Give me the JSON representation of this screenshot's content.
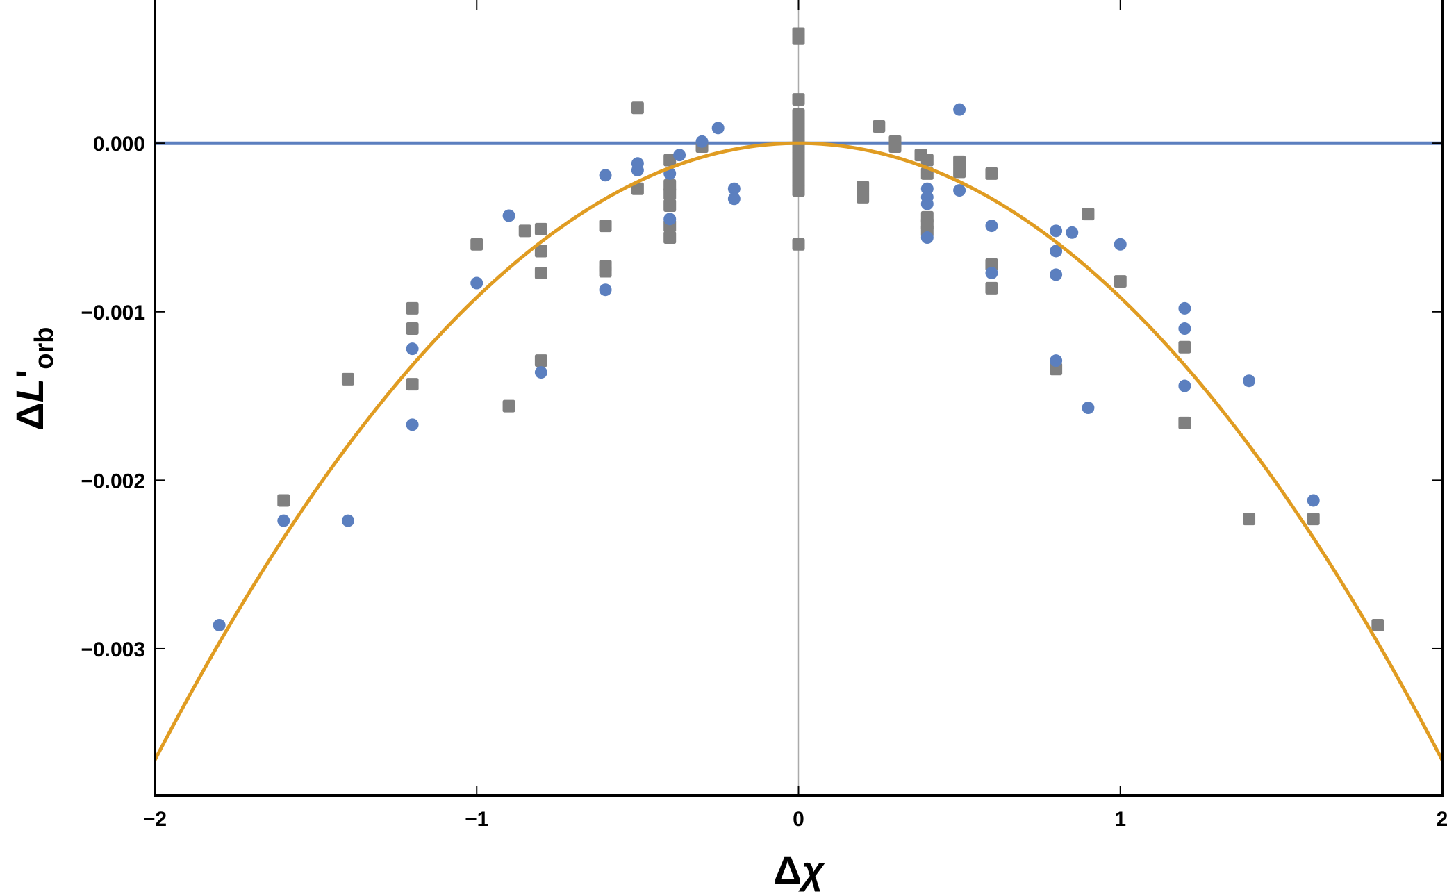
{
  "chart_data": {
    "type": "scatter",
    "xlabel_main": "Δ",
    "xlabel_var": "χ",
    "ylabel_main": "Δ",
    "ylabel_var": "L",
    "ylabel_prime": "'",
    "ylabel_sub": "orb",
    "xlim": [
      -2,
      2
    ],
    "ylim": [
      -0.00387,
      0.00085
    ],
    "x_ticks": [
      {
        "value": -2,
        "label": "−2"
      },
      {
        "value": -1,
        "label": "−1"
      },
      {
        "value": 0,
        "label": "0"
      },
      {
        "value": 1,
        "label": "1"
      },
      {
        "value": 2,
        "label": "2"
      }
    ],
    "y_ticks": [
      {
        "value": 0,
        "label": "0.000"
      },
      {
        "value": -0.001,
        "label": "−0.001"
      },
      {
        "value": -0.002,
        "label": "−0.002"
      },
      {
        "value": -0.003,
        "label": "−0.003"
      }
    ],
    "grid": false,
    "colors": {
      "circles": "#5b7fbf",
      "squares": "#808080",
      "curve": "#e09c22",
      "zero_line": "#5b7fbf",
      "vertical_axis": "#aaaaaa"
    },
    "series": [
      {
        "marker": "circle",
        "points": [
          [
            -1.8,
            -0.00286
          ],
          [
            -1.6,
            -0.00224
          ],
          [
            -1.4,
            -0.00224
          ],
          [
            -1.2,
            -0.00122
          ],
          [
            -1.2,
            -0.00167
          ],
          [
            -1.0,
            -0.00083
          ],
          [
            -0.9,
            -0.00043
          ],
          [
            -0.6,
            -0.00019
          ],
          [
            -0.6,
            -0.00087
          ],
          [
            -0.5,
            -0.00012
          ],
          [
            -0.5,
            -0.00016
          ],
          [
            -0.4,
            -0.00018
          ],
          [
            -0.4,
            -0.00045
          ],
          [
            -0.8,
            -0.00136
          ],
          [
            -0.37,
            -7e-05
          ],
          [
            -0.3,
            1e-05
          ],
          [
            -0.25,
            9e-05
          ],
          [
            -0.2,
            -0.00027
          ],
          [
            -0.2,
            -0.00033
          ],
          [
            0.5,
            0.0002
          ],
          [
            0.4,
            -0.00027
          ],
          [
            0.4,
            -0.00032
          ],
          [
            0.4,
            -0.00036
          ],
          [
            0.4,
            -0.00056
          ],
          [
            0.5,
            -0.00028
          ],
          [
            0.6,
            -0.00049
          ],
          [
            0.6,
            -0.00077
          ],
          [
            0.8,
            -0.00052
          ],
          [
            0.8,
            -0.00064
          ],
          [
            0.8,
            -0.00078
          ],
          [
            0.8,
            -0.00129
          ],
          [
            0.85,
            -0.00053
          ],
          [
            0.9,
            -0.00157
          ],
          [
            1.0,
            -0.0006
          ],
          [
            1.2,
            -0.00098
          ],
          [
            1.2,
            -0.0011
          ],
          [
            1.2,
            -0.00144
          ],
          [
            1.4,
            -0.00141
          ],
          [
            1.6,
            -0.00212
          ]
        ]
      },
      {
        "marker": "square",
        "points": [
          [
            -1.6,
            -0.00212
          ],
          [
            -1.4,
            -0.0014
          ],
          [
            -1.2,
            -0.00098
          ],
          [
            -1.2,
            -0.0011
          ],
          [
            -1.2,
            -0.00143
          ],
          [
            -1.0,
            -0.0006
          ],
          [
            -0.9,
            -0.00156
          ],
          [
            -0.85,
            -0.00052
          ],
          [
            -0.8,
            -0.00051
          ],
          [
            -0.8,
            -0.00064
          ],
          [
            -0.8,
            -0.00077
          ],
          [
            -0.8,
            -0.00129
          ],
          [
            -0.6,
            -0.00049
          ],
          [
            -0.6,
            -0.00073
          ],
          [
            -0.6,
            -0.00076
          ],
          [
            -0.5,
            0.00021
          ],
          [
            -0.5,
            -0.00027
          ],
          [
            -0.4,
            -0.0001
          ],
          [
            -0.4,
            -0.00025
          ],
          [
            -0.4,
            -0.0003
          ],
          [
            -0.4,
            -0.00037
          ],
          [
            -0.4,
            -0.00049
          ],
          [
            -0.4,
            -0.00056
          ],
          [
            -0.3,
            -2e-05
          ],
          [
            0,
            0.00065
          ],
          [
            0,
            0.00062
          ],
          [
            0,
            0.00026
          ],
          [
            0,
            0.00017
          ],
          [
            0,
            0.00013
          ],
          [
            0,
            9e-05
          ],
          [
            0,
            5e-05
          ],
          [
            0,
            -1e-05
          ],
          [
            0,
            -4e-05
          ],
          [
            0,
            -8e-05
          ],
          [
            0,
            -0.00012
          ],
          [
            0,
            -0.00016
          ],
          [
            0,
            -0.0002
          ],
          [
            0,
            -0.00024
          ],
          [
            0,
            -0.00028
          ],
          [
            0,
            -0.0006
          ],
          [
            0.2,
            -0.00026
          ],
          [
            0.2,
            -0.00032
          ],
          [
            0.25,
            0.0001
          ],
          [
            0.3,
            1e-05
          ],
          [
            0.3,
            -2e-05
          ],
          [
            0.38,
            -7e-05
          ],
          [
            0.4,
            -0.0001
          ],
          [
            0.4,
            -0.00018
          ],
          [
            0.4,
            -0.00044
          ],
          [
            0.4,
            -0.00048
          ],
          [
            0.4,
            -0.00052
          ],
          [
            0.5,
            -0.00011
          ],
          [
            0.5,
            -0.00017
          ],
          [
            0.6,
            -0.00018
          ],
          [
            0.6,
            -0.00072
          ],
          [
            0.6,
            -0.00086
          ],
          [
            0.8,
            -0.00134
          ],
          [
            0.9,
            -0.00042
          ],
          [
            1.0,
            -0.00082
          ],
          [
            1.2,
            -0.00121
          ],
          [
            1.2,
            -0.00166
          ],
          [
            1.4,
            -0.00223
          ],
          [
            1.6,
            -0.00223
          ],
          [
            1.8,
            -0.00286
          ]
        ]
      }
    ],
    "reference_line": {
      "y": 0
    },
    "fit_curve": {
      "form": "y = a*x^2",
      "a": -0.000915
    }
  }
}
